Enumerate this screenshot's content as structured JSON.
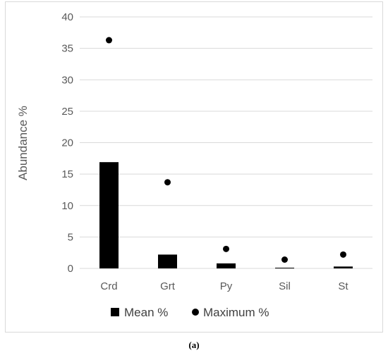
{
  "caption": "(a)",
  "chart_data": {
    "type": "bar",
    "categories": [
      "Crd",
      "Grt",
      "Py",
      "Sil",
      "St"
    ],
    "series": [
      {
        "name": "Mean %",
        "kind": "bar",
        "values": [
          16.9,
          2.2,
          0.8,
          0.1,
          0.3
        ],
        "color": "#000000"
      },
      {
        "name": "Maximum %",
        "kind": "marker",
        "values": [
          36.3,
          13.7,
          3.1,
          1.4,
          2.2
        ],
        "color": "#000000"
      }
    ],
    "ylabel": "Abundance %",
    "xlabel": "",
    "ylim": [
      0,
      40
    ],
    "yticks": [
      "0",
      "5",
      "10",
      "15",
      "20",
      "25",
      "30",
      "35",
      "40"
    ],
    "grid": true,
    "gridColor": "#d9d9d9",
    "legend": "bottom"
  }
}
